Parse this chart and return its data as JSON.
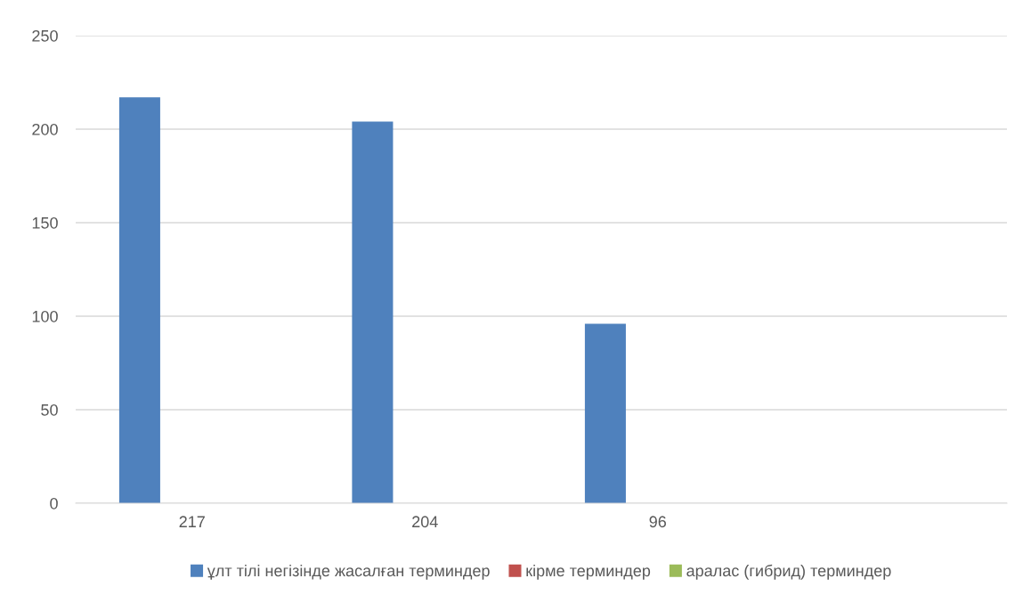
{
  "chart_data": {
    "type": "bar",
    "categories": [
      "217",
      "204",
      "96",
      null
    ],
    "series": [
      {
        "name": "ұлт тілі негізінде жасалған терминдер",
        "color": "#4f81bd",
        "values": [
          217,
          204,
          96,
          null
        ]
      },
      {
        "name": "кірме терминдер",
        "color": "#c0504d",
        "values": [
          null,
          null,
          null,
          null
        ]
      },
      {
        "name": "аралас (гибрид) терминдер",
        "color": "#9bbb59",
        "values": [
          null,
          null,
          null,
          null
        ]
      }
    ],
    "ylim": [
      0,
      250
    ],
    "yticks": [
      0,
      50,
      100,
      150,
      200,
      250
    ],
    "grid": "y",
    "legend": "bottom"
  }
}
